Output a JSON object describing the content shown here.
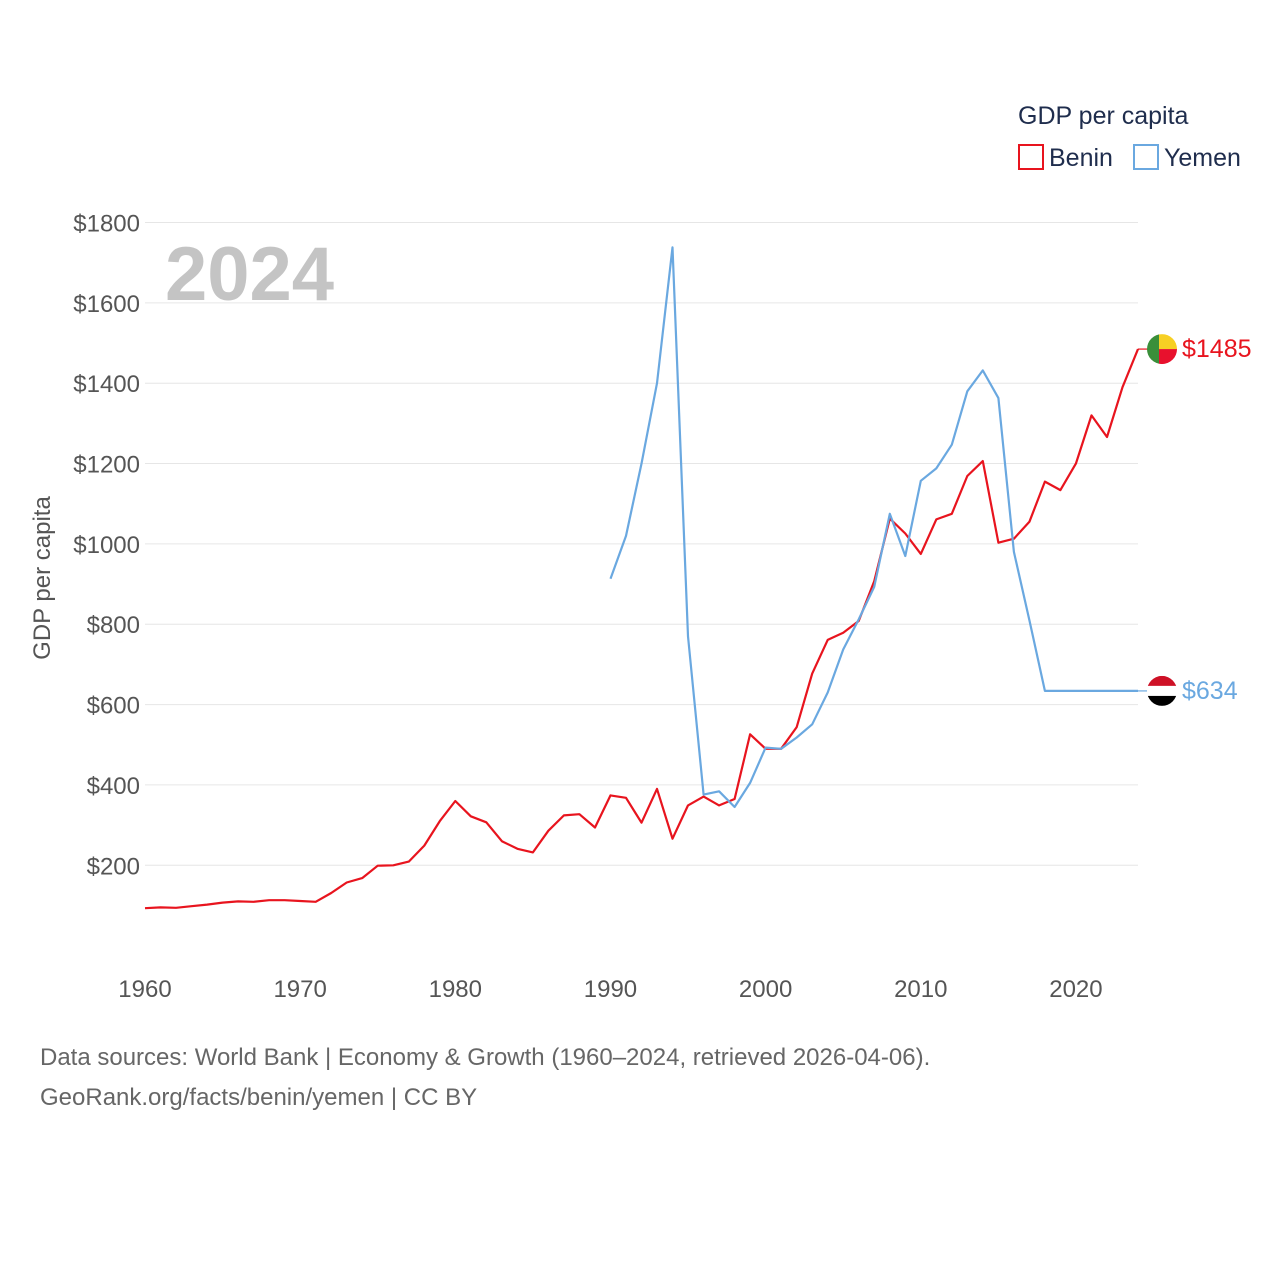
{
  "chart_data": {
    "type": "line",
    "ylabel": "GDP per capita",
    "year_stamp": "2024",
    "xlim": [
      1960,
      2024
    ],
    "ylim": [
      0,
      1850
    ],
    "x_ticks": [
      1960,
      1970,
      1980,
      1990,
      2000,
      2010,
      2020
    ],
    "y_ticks": [
      200,
      400,
      600,
      800,
      1000,
      1200,
      1400,
      1600,
      1800
    ],
    "y_tick_labels": [
      "$200",
      "$400",
      "$600",
      "$800",
      "$1000",
      "$1200",
      "$1400",
      "$1600",
      "$1800"
    ],
    "legend": {
      "title": "GDP per capita",
      "position": "top-right",
      "entries": [
        "Benin",
        "Yemen"
      ]
    },
    "series": [
      {
        "name": "Benin",
        "color": "#e8141e",
        "end_label": "$1485",
        "x": [
          1960,
          1961,
          1962,
          1963,
          1964,
          1965,
          1966,
          1967,
          1968,
          1969,
          1970,
          1971,
          1972,
          1973,
          1974,
          1975,
          1976,
          1977,
          1978,
          1979,
          1980,
          1981,
          1982,
          1983,
          1984,
          1985,
          1986,
          1987,
          1988,
          1989,
          1990,
          1991,
          1992,
          1993,
          1994,
          1995,
          1996,
          1997,
          1998,
          1999,
          2000,
          2001,
          2002,
          2003,
          2004,
          2005,
          2006,
          2007,
          2008,
          2009,
          2010,
          2011,
          2012,
          2013,
          2014,
          2015,
          2016,
          2017,
          2018,
          2019,
          2020,
          2021,
          2022,
          2023,
          2024
        ],
        "values": [
          93,
          95,
          94,
          98,
          102,
          107,
          110,
          109,
          113,
          113,
          111,
          109,
          131,
          157,
          168,
          199,
          200,
          209,
          249,
          310,
          360,
          322,
          307,
          260,
          241,
          232,
          286,
          324,
          327,
          294,
          374,
          368,
          306,
          390,
          266,
          349,
          371,
          349,
          365,
          526,
          490,
          490,
          544,
          677,
          761,
          779,
          808,
          907,
          1063,
          1026,
          975,
          1061,
          1075,
          1169,
          1206,
          1003,
          1013,
          1055,
          1155,
          1134,
          1200,
          1320,
          1266,
          1390,
          1485
        ]
      },
      {
        "name": "Yemen",
        "color": "#6aa8e0",
        "end_label": "$634",
        "x": [
          1990,
          1991,
          1992,
          1993,
          1994,
          1995,
          1996,
          1997,
          1998,
          1999,
          2000,
          2001,
          2002,
          2003,
          2004,
          2005,
          2006,
          2007,
          2008,
          2009,
          2010,
          2011,
          2012,
          2013,
          2014,
          2015,
          2016,
          2017,
          2018,
          2019,
          2020,
          2021,
          2022,
          2023,
          2024
        ],
        "values": [
          913,
          1020,
          1200,
          1400,
          1738,
          770,
          376,
          384,
          345,
          405,
          493,
          490,
          518,
          551,
          630,
          737,
          812,
          893,
          1075,
          970,
          1157,
          1188,
          1247,
          1380,
          1432,
          1363,
          980,
          810,
          634,
          634,
          634,
          634,
          634,
          634,
          634
        ]
      }
    ]
  },
  "footer": {
    "line1": "Data sources: World Bank | Economy & Growth (1960–2024, retrieved 2026-04-06).",
    "line2": "GeoRank.org/facts/benin/yemen | CC BY"
  },
  "flags": {
    "benin": {
      "green": "#3a8f3a",
      "yellow": "#f7d024",
      "red": "#e8112d"
    },
    "yemen": {
      "red": "#ce1126",
      "white": "#ffffff",
      "black": "#000000"
    }
  },
  "colors": {
    "grid": "#e6e6e6",
    "axis_text": "#555555",
    "legend_text": "#1f2d4d",
    "year_stamp": "#c4c4c4"
  }
}
